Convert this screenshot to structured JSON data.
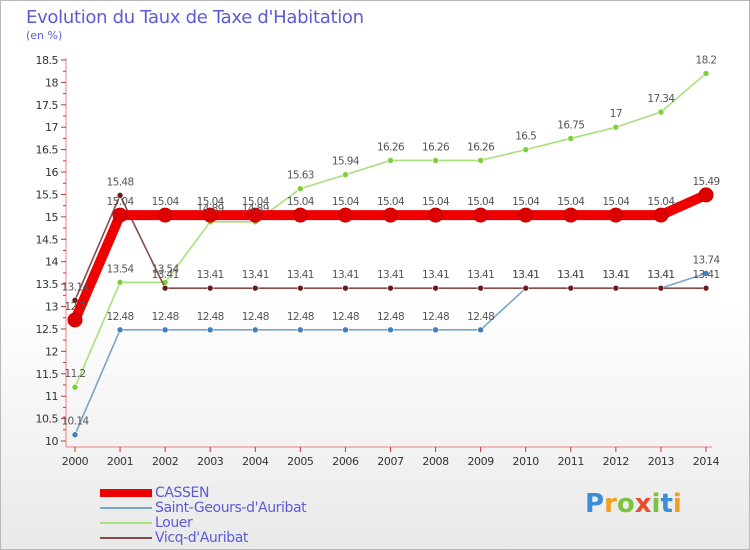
{
  "chart_data": {
    "type": "line",
    "title": "Evolution du Taux de Taxe d'Habitation",
    "ylabel": "(en %)",
    "xlabel": "",
    "ylim": [
      10,
      18.5
    ],
    "y_ticks": [
      "10",
      "10.5",
      "11",
      "11.5",
      "12",
      "12.5",
      "13",
      "13.5",
      "14",
      "14.5",
      "15",
      "15.5",
      "16",
      "16.5",
      "17",
      "17.5",
      "18",
      "18.5"
    ],
    "y_tick_values": [
      10,
      10.5,
      11,
      11.5,
      12,
      12.5,
      13,
      13.5,
      14,
      14.5,
      15,
      15.5,
      16,
      16.5,
      17,
      17.5,
      18,
      18.5
    ],
    "categories": [
      "2000",
      "2001",
      "2002",
      "2003",
      "2004",
      "2005",
      "2006",
      "2007",
      "2008",
      "2009",
      "2010",
      "2011",
      "2012",
      "2013",
      "2014"
    ],
    "series": [
      {
        "name": "CASSEN",
        "color": "#ee0000",
        "marker": "#dd0000",
        "values": [
          12.7,
          15.04,
          15.04,
          15.04,
          15.04,
          15.04,
          15.04,
          15.04,
          15.04,
          15.04,
          15.04,
          15.04,
          15.04,
          15.04,
          15.49
        ],
        "labels": [
          "12.7",
          "15.04",
          "15.04",
          "15.04",
          "15.04",
          "15.04",
          "15.04",
          "15.04",
          "15.04",
          "15.04",
          "15.04",
          "15.04",
          "15.04",
          "15.04",
          "15.49"
        ]
      },
      {
        "name": "Saint-Geours-d'Auribat",
        "color": "#7aa4c9",
        "marker": "#3f7fbf",
        "values": [
          10.14,
          12.48,
          12.48,
          12.48,
          12.48,
          12.48,
          12.48,
          12.48,
          12.48,
          12.48,
          13.41,
          13.41,
          13.41,
          13.41,
          13.74
        ],
        "labels": [
          "10.14",
          "12.48",
          "12.48",
          "12.48",
          "12.48",
          "12.48",
          "12.48",
          "12.48",
          "12.48",
          "12.48",
          "13.41",
          "13.41",
          "13.41",
          "13.41",
          "13.74"
        ]
      },
      {
        "name": "Louer",
        "color": "#a8e07a",
        "marker": "#7cd03a",
        "values": [
          11.2,
          13.54,
          13.54,
          14.89,
          14.89,
          15.63,
          15.94,
          16.26,
          16.26,
          16.26,
          16.5,
          16.75,
          17,
          17.34,
          18.2
        ],
        "labels": [
          "11.2",
          "13.54",
          "13.54",
          "14.89",
          "14.89",
          "15.63",
          "15.94",
          "16.26",
          "16.26",
          "16.26",
          "16.5",
          "16.75",
          "17",
          "17.34",
          "18.2"
        ]
      },
      {
        "name": "Vicq-d'Auribat",
        "color": "#8a4a4a",
        "marker": "#6a1a1a",
        "values": [
          13.14,
          15.48,
          13.41,
          13.41,
          13.41,
          13.41,
          13.41,
          13.41,
          13.41,
          13.41,
          13.41,
          13.41,
          13.41,
          13.41,
          13.41
        ],
        "labels": [
          "13.14",
          "15.48",
          "13.41",
          "13.41",
          "13.41",
          "13.41",
          "13.41",
          "13.41",
          "13.41",
          "13.41",
          "13.41",
          "13.41",
          "13.41",
          "13.41",
          "13.41"
        ]
      }
    ],
    "grid": false,
    "legend_position": "bottom-left"
  },
  "brand": {
    "text": "Proxiti",
    "colors": [
      "#3a8fd6",
      "#f0a020",
      "#7cc242",
      "#e84c2c",
      "#7cc242",
      "#3a8fd6",
      "#f0a020"
    ]
  }
}
